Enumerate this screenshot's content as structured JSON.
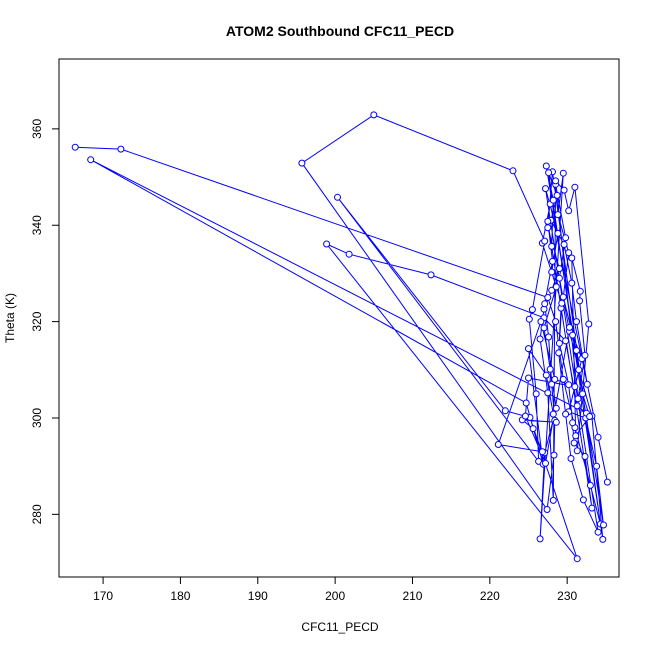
{
  "chart_data": {
    "type": "line",
    "title": "ATOM2 Southbound CFC11_PECD",
    "xlabel": "CFC11_PECD",
    "ylabel": "Theta (K)",
    "xlim": [
      164.3,
      236.7
    ],
    "ylim": [
      267.0,
      374.5
    ],
    "xticks": [
      170,
      180,
      190,
      200,
      210,
      220,
      230
    ],
    "yticks": [
      280,
      300,
      320,
      340,
      360
    ],
    "grid": false,
    "legend": "none",
    "series_color": "#0000ff",
    "series": [
      {
        "values": [
          [
            166.4,
            356.2
          ],
          [
            172.3,
            355.8
          ],
          [
            227.5,
            325.0
          ],
          [
            228.5,
            320.0
          ],
          [
            229.5,
            308.0
          ],
          [
            231.0,
            298.0
          ],
          [
            233.0,
            286.0
          ],
          [
            234.3,
            278.0
          ],
          [
            228.1,
            351.1
          ],
          [
            227.5,
            339.5
          ],
          [
            229.0,
            331.0
          ],
          [
            228.0,
            326.5
          ],
          [
            227.0,
            322.6
          ],
          [
            226.5,
            316.4
          ],
          [
            227.5,
            305.2
          ],
          [
            228.2,
            282.9
          ],
          [
            228.5,
            348.5
          ],
          [
            229.8,
            337.4
          ],
          [
            229.0,
            329.0
          ],
          [
            230.3,
            318.0
          ],
          [
            231.5,
            310.0
          ],
          [
            233.2,
            300.4
          ],
          [
            234.6,
            274.8
          ],
          [
            227.6,
            350.9
          ],
          [
            228.7,
            346.2
          ],
          [
            227.9,
            341.0
          ],
          [
            229.6,
            336.0
          ],
          [
            230.6,
            328.0
          ],
          [
            231.2,
            320.0
          ],
          [
            232.6,
            307.0
          ],
          [
            234.0,
            296.0
          ],
          [
            235.2,
            286.7
          ],
          [
            227.8,
            344.4
          ],
          [
            226.8,
            336.3
          ],
          [
            228.6,
            327.2
          ],
          [
            227.0,
            318.7
          ],
          [
            227.8,
            310.1
          ],
          [
            228.6,
            302.0
          ],
          [
            227.1,
            292.8
          ],
          [
            226.5,
            274.9
          ],
          [
            229.5,
            350.8
          ],
          [
            228.8,
            342.2
          ],
          [
            230.2,
            334.3
          ],
          [
            229.5,
            325.1
          ],
          [
            230.7,
            317.2
          ],
          [
            231.9,
            312.3
          ],
          [
            230.2,
            301.3
          ],
          [
            232.4,
            300.0
          ],
          [
            233.8,
            290.0
          ],
          [
            234.7,
            277.8
          ],
          [
            227.3,
            352.3
          ],
          [
            228.2,
            345.2
          ],
          [
            228.0,
            335.6
          ],
          [
            229.2,
            322.8
          ],
          [
            228.9,
            313.5
          ],
          [
            229.8,
            300.8
          ],
          [
            230.5,
            291.6
          ],
          [
            232.1,
            283.0
          ],
          [
            234.0,
            276.3
          ],
          [
            227.2,
            347.6
          ],
          [
            228.8,
            338.3
          ],
          [
            228.0,
            330.3
          ],
          [
            229.3,
            323.8
          ],
          [
            229.0,
            315.5
          ],
          [
            230.2,
            306.9
          ],
          [
            230.7,
            299.0
          ],
          [
            230.9,
            294.8
          ],
          [
            232.3,
            292.0
          ],
          [
            233.2,
            281.3
          ],
          [
            227.5,
            340.8
          ],
          [
            228.1,
            332.5
          ],
          [
            227.1,
            323.7
          ],
          [
            227.6,
            316.8
          ],
          [
            228.0,
            307.0
          ],
          [
            228.4,
            299.5
          ],
          [
            228.3,
            292.3
          ],
          [
            227.4,
            281.0
          ],
          [
            195.7,
            352.9
          ],
          [
            205.0,
            362.9
          ],
          [
            223.0,
            351.3
          ],
          [
            227.1,
            336.7
          ],
          [
            225.5,
            322.5
          ],
          [
            225.1,
            320.5
          ],
          [
            226.0,
            305.0
          ],
          [
            226.3,
            291.0
          ],
          [
            200.3,
            345.8
          ],
          [
            222.0,
            301.5
          ],
          [
            225.2,
            300.1
          ],
          [
            231.3,
            270.8
          ],
          [
            198.9,
            336.1
          ],
          [
            201.8,
            334.0
          ],
          [
            212.4,
            329.7
          ],
          [
            227.0,
            320.8
          ],
          [
            229.8,
            316.0
          ],
          [
            231.3,
            302.5
          ],
          [
            232.5,
            301.0
          ],
          [
            168.4,
            353.6
          ],
          [
            224.7,
            303.1
          ],
          [
            226.9,
            290.4
          ],
          [
            225.0,
            314.4
          ],
          [
            227.3,
            308.9
          ],
          [
            228.2,
            300.8
          ],
          [
            228.6,
            299.1
          ],
          [
            224.2,
            299.6
          ],
          [
            225.6,
            297.8
          ],
          [
            226.8,
            293.0
          ],
          [
            221.1,
            294.5
          ],
          [
            226.6,
            320.0
          ],
          [
            228.4,
            308.0
          ],
          [
            231.0,
            306.5
          ],
          [
            225.0,
            308.3
          ],
          [
            224.6,
            300.4
          ],
          [
            227.2,
            290.6
          ],
          [
            230.3,
            318.8
          ],
          [
            231.2,
            314.0
          ],
          [
            232.0,
            305.0
          ],
          [
            232.9,
            300.3
          ],
          [
            231.1,
            296.3
          ],
          [
            230.6,
            333.2
          ],
          [
            231.7,
            326.3
          ],
          [
            231.6,
            324.3
          ],
          [
            232.3,
            313.0
          ],
          [
            231.4,
            304.0
          ],
          [
            228.5,
            349.2
          ],
          [
            229.6,
            347.3
          ],
          [
            230.2,
            343.0
          ],
          [
            231.0,
            347.9
          ],
          [
            232.8,
            319.5
          ],
          [
            231.3,
            293.2
          ]
        ]
      }
    ]
  }
}
